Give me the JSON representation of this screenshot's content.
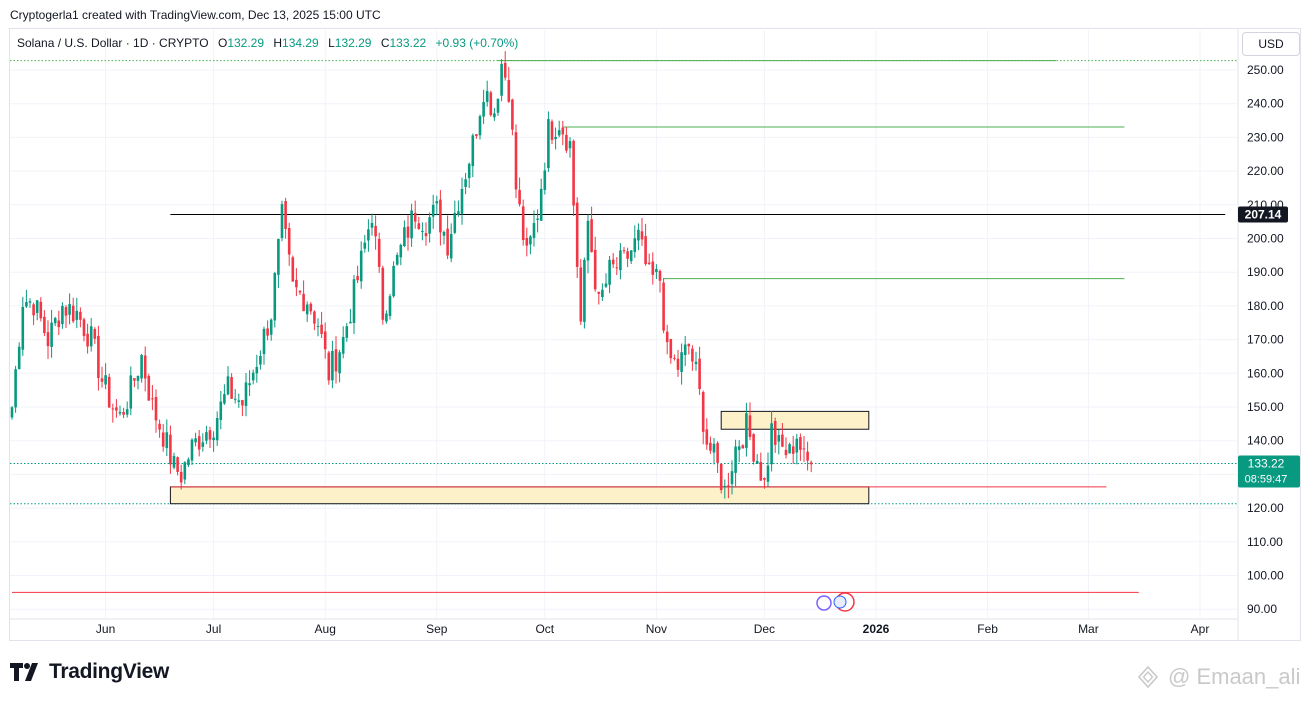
{
  "header": {
    "attribution": "Cryptogerla1 created with TradingView.com, Dec 13, 2025 15:00 UTC"
  },
  "legend": {
    "symbol": "Solana / U.S. Dollar · 1D · CRYPTO",
    "open_label": "O",
    "open": "132.29",
    "high_label": "H",
    "high": "134.29",
    "low_label": "L",
    "low": "132.29",
    "close_label": "C",
    "close": "133.22",
    "change": "+0.93 (+0.70%)"
  },
  "currency": "USD",
  "branding": {
    "logo_text": "TradingView"
  },
  "watermark": {
    "text": "@ Emaan_ali"
  },
  "colors": {
    "up": "#089981",
    "down": "#f23645",
    "zone_fill": "#fdf1c9",
    "grid": "#f0f3fa"
  },
  "chart_data": {
    "type": "candlestick",
    "title": "Solana / U.S. Dollar · 1D · CRYPTO",
    "y_range": [
      88,
      256
    ],
    "y_ticks": [
      90,
      100,
      110,
      120,
      130,
      140,
      150,
      160,
      170,
      180,
      190,
      200,
      210,
      220,
      230,
      240,
      250
    ],
    "y_tick_labels": [
      "90.00",
      "100.00",
      "110.00",
      "120.00",
      "130.00",
      "140.00",
      "150.00",
      "160.00",
      "170.00",
      "180.00",
      "190.00",
      "200.00",
      "210.00",
      "220.00",
      "230.00",
      "240.00",
      "250.00"
    ],
    "x_range_days": [
      0,
      337
    ],
    "x_ticks": [
      {
        "day": 26,
        "label": "Jun"
      },
      {
        "day": 56,
        "label": "Jul"
      },
      {
        "day": 87,
        "label": "Aug"
      },
      {
        "day": 118,
        "label": "Sep"
      },
      {
        "day": 148,
        "label": "Oct"
      },
      {
        "day": 179,
        "label": "Nov"
      },
      {
        "day": 209,
        "label": "Dec"
      },
      {
        "day": 240,
        "label": "2026"
      },
      {
        "day": 271,
        "label": "Feb"
      },
      {
        "day": 299,
        "label": "Mar"
      },
      {
        "day": 330,
        "label": "Apr"
      }
    ],
    "price_badges": [
      {
        "price": 207.14,
        "label": "207.14",
        "style": "black"
      },
      {
        "price": 133.22,
        "label": "133.22",
        "sub": "08:59:47",
        "style": "green"
      }
    ],
    "horizontal_lines": [
      {
        "price": 207.14,
        "start_day": 44,
        "end_day": 337,
        "color": "#000000"
      },
      {
        "price": 252.8,
        "start_day": 135,
        "end_day": 290,
        "color": "#4caf50"
      },
      {
        "price": 233.1,
        "start_day": 153,
        "end_day": 309,
        "color": "#4caf50"
      },
      {
        "price": 188.1,
        "start_day": 181,
        "end_day": 309,
        "color": "#4caf50"
      },
      {
        "price": 126.3,
        "start_day": 44,
        "end_day": 304,
        "color": "#f23645"
      },
      {
        "price": 95.0,
        "start_day": 0,
        "end_day": 313,
        "color": "#f23645"
      }
    ],
    "dotted_lines": [
      {
        "price": 252.8,
        "color": "#4caf50"
      },
      {
        "price": 133.22,
        "color": "#089981"
      },
      {
        "price": 121.3,
        "color": "#089981"
      }
    ],
    "zones": [
      {
        "top": 148.7,
        "bottom": 143.4,
        "start_day": 197,
        "end_day": 238
      },
      {
        "top": 126.3,
        "bottom": 121.3,
        "start_day": 44,
        "end_day": 238
      }
    ],
    "anchors": [
      [
        0,
        150
      ],
      [
        3,
        182
      ],
      [
        6,
        181
      ],
      [
        10,
        170
      ],
      [
        14,
        180
      ],
      [
        18,
        178
      ],
      [
        22,
        170
      ],
      [
        25,
        158
      ],
      [
        28,
        150
      ],
      [
        30,
        147
      ],
      [
        33,
        155
      ],
      [
        36,
        165
      ],
      [
        39,
        150
      ],
      [
        42,
        142
      ],
      [
        45,
        132
      ],
      [
        47,
        130
      ],
      [
        50,
        138
      ],
      [
        53,
        142
      ],
      [
        56,
        145
      ],
      [
        60,
        155
      ],
      [
        64,
        151
      ],
      [
        68,
        164
      ],
      [
        72,
        178
      ],
      [
        75,
        206
      ],
      [
        78,
        185
      ],
      [
        82,
        182
      ],
      [
        85,
        175
      ],
      [
        88,
        160
      ],
      [
        92,
        170
      ],
      [
        96,
        188
      ],
      [
        100,
        208
      ],
      [
        103,
        178
      ],
      [
        106,
        190
      ],
      [
        109,
        200
      ],
      [
        112,
        208
      ],
      [
        115,
        205
      ],
      [
        118,
        208
      ],
      [
        121,
        199
      ],
      [
        124,
        212
      ],
      [
        128,
        228
      ],
      [
        131,
        245
      ],
      [
        134,
        238
      ],
      [
        136,
        252
      ],
      [
        138,
        245
      ],
      [
        140,
        215
      ],
      [
        143,
        194
      ],
      [
        146,
        208
      ],
      [
        149,
        232
      ],
      [
        152,
        235
      ],
      [
        155,
        228
      ],
      [
        158,
        175
      ],
      [
        160,
        205
      ],
      [
        163,
        180
      ],
      [
        166,
        190
      ],
      [
        170,
        193
      ],
      [
        174,
        200
      ],
      [
        177,
        188
      ],
      [
        180,
        188
      ],
      [
        182,
        165
      ],
      [
        185,
        162
      ],
      [
        188,
        168
      ],
      [
        190,
        160
      ],
      [
        193,
        140
      ],
      [
        196,
        132
      ],
      [
        198,
        125
      ],
      [
        201,
        138
      ],
      [
        204,
        144
      ],
      [
        207,
        135
      ],
      [
        209,
        127
      ],
      [
        211,
        143
      ],
      [
        213,
        138
      ],
      [
        216,
        136
      ],
      [
        218,
        142
      ],
      [
        220,
        134
      ],
      [
        222,
        133
      ]
    ]
  }
}
